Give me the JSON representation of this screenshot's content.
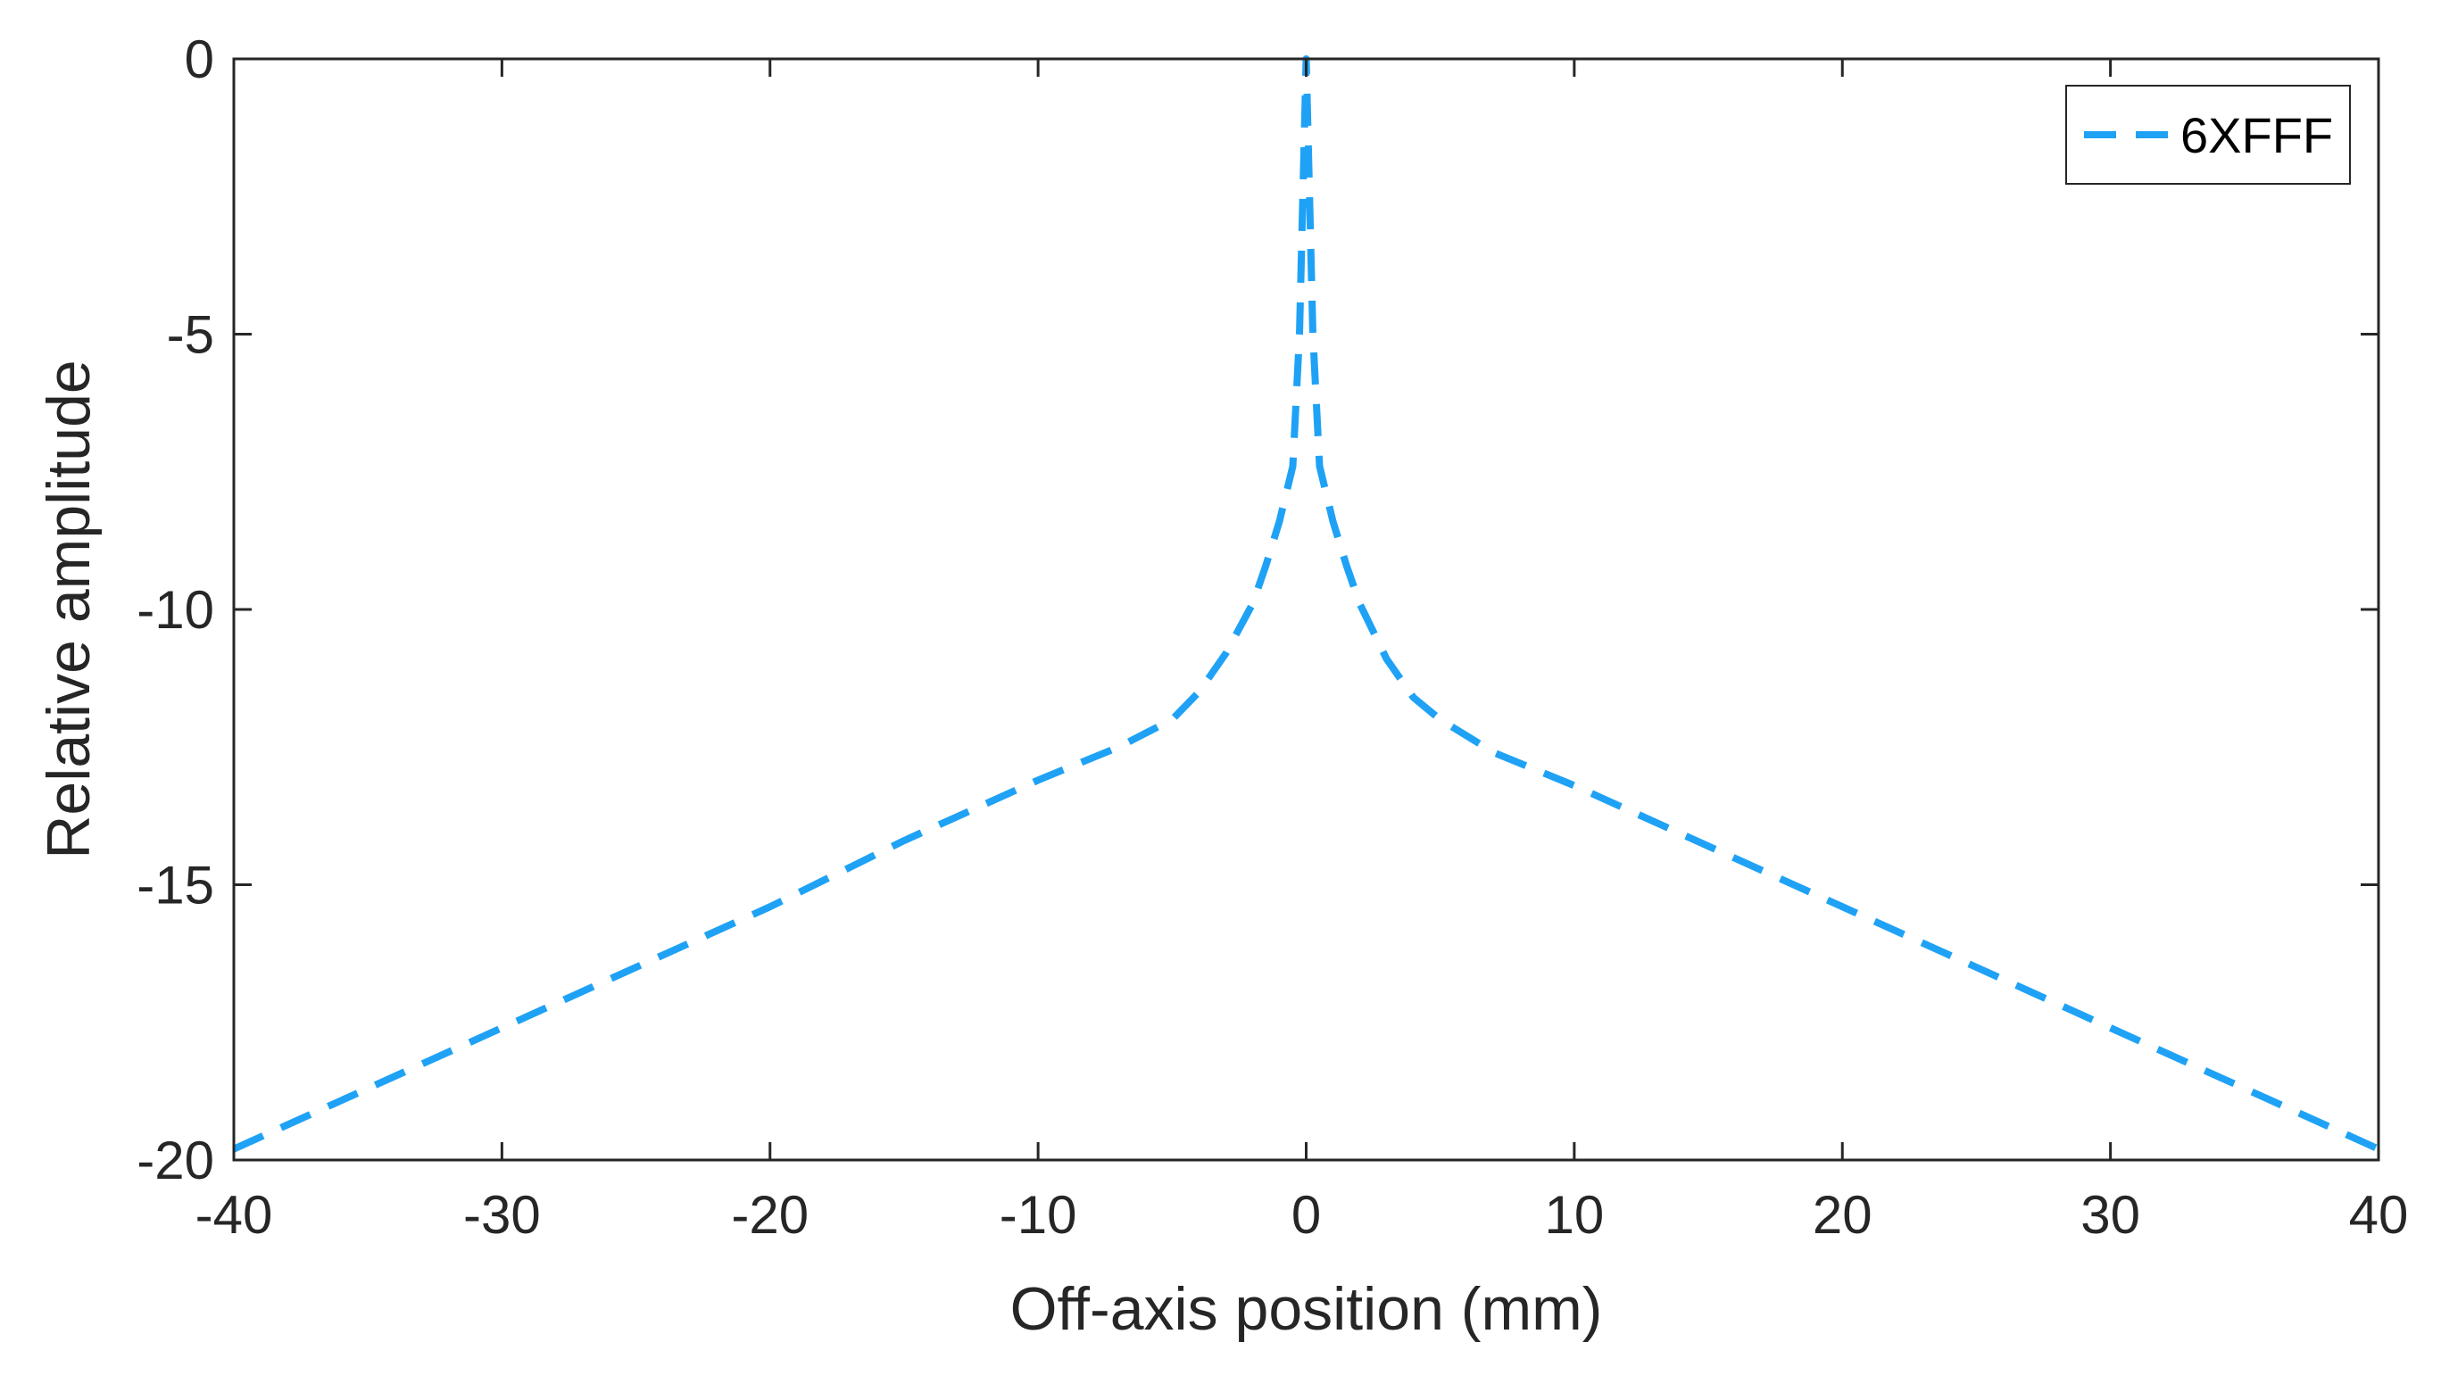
{
  "chart_data": {
    "type": "line",
    "title": "",
    "xlabel": "Off-axis position (mm)",
    "ylabel": "Relative amplitude",
    "xlim": [
      -40,
      40
    ],
    "ylim": [
      -20,
      0
    ],
    "xticks": [
      -40,
      -30,
      -20,
      -10,
      0,
      10,
      20,
      30,
      40
    ],
    "yticks": [
      0,
      -5,
      -10,
      -15,
      -20
    ],
    "xtick_labels": [
      "-40",
      "-30",
      "-20",
      "-10",
      "0",
      "10",
      "20",
      "30",
      "40"
    ],
    "ytick_labels": [
      "0",
      "-5",
      "-10",
      "-15",
      "-20"
    ],
    "grid": false,
    "box": true,
    "legend_position": "top-right",
    "series": [
      {
        "name": "6XFFF",
        "color": "#1fa2f5",
        "line_style": "dashed",
        "x": [
          -40,
          -35,
          -30,
          -25,
          -20,
          -15,
          -10,
          -7,
          -5,
          -4,
          -3,
          -2,
          -1.5,
          -1,
          -0.5,
          -0.25,
          0,
          0.25,
          0.5,
          1,
          1.5,
          2,
          3,
          4,
          5,
          7,
          10,
          15,
          20,
          25,
          30,
          35,
          40
        ],
        "y": [
          -19.8,
          -18.7,
          -17.6,
          -16.5,
          -15.4,
          -14.2,
          -13.1,
          -12.5,
          -12.0,
          -11.5,
          -10.8,
          -9.9,
          -9.2,
          -8.4,
          -7.4,
          -5.0,
          0,
          -5.0,
          -7.4,
          -8.4,
          -9.2,
          -9.9,
          -10.9,
          -11.6,
          -12.0,
          -12.6,
          -13.2,
          -14.3,
          -15.4,
          -16.5,
          -17.6,
          -18.7,
          -19.8
        ]
      }
    ]
  }
}
